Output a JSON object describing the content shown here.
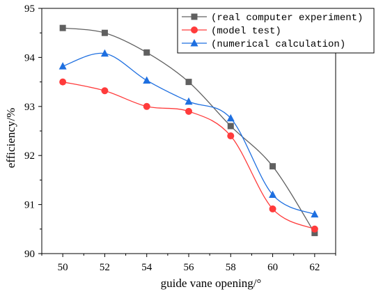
{
  "chart_data": {
    "type": "line",
    "xlabel": "guide vane opening/°",
    "ylabel": "efficiency/%",
    "x": [
      50,
      52,
      54,
      56,
      58,
      60,
      62
    ],
    "x_ticks": [
      "50",
      "52",
      "54",
      "56",
      "58",
      "60",
      "62"
    ],
    "y_ticks": [
      "90",
      "91",
      "92",
      "93",
      "94",
      "95"
    ],
    "xlim": [
      49,
      63
    ],
    "ylim": [
      90,
      95
    ],
    "grid": false,
    "legend_position": "top-right",
    "series": [
      {
        "name": "(real computer experiment)",
        "color": "#606060",
        "marker": "square",
        "values": [
          94.6,
          94.5,
          94.1,
          93.5,
          92.6,
          91.78,
          90.42
        ]
      },
      {
        "name": "(model test)",
        "color": "#ff3b3b",
        "marker": "circle",
        "values": [
          93.5,
          93.32,
          93.0,
          92.9,
          92.4,
          90.91,
          90.5
        ]
      },
      {
        "name": "(numerical calculation)",
        "color": "#1e6fe0",
        "marker": "triangle",
        "values": [
          93.82,
          94.08,
          93.53,
          93.1,
          92.76,
          91.2,
          90.8
        ]
      }
    ]
  }
}
